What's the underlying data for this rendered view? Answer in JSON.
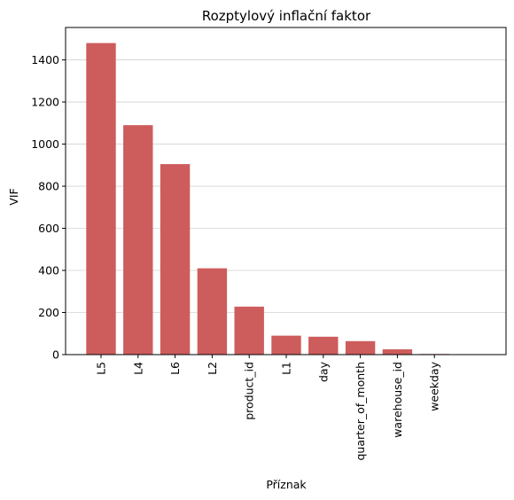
{
  "chart_data": {
    "type": "bar",
    "title": "Rozptylový inflační faktor",
    "xlabel": "Příznak",
    "ylabel": "VIF",
    "categories": [
      "L5",
      "L4",
      "L6",
      "L2",
      "product_id",
      "L1",
      "day",
      "quarter_of_month",
      "warehouse_id",
      "weekday"
    ],
    "values": [
      1480,
      1090,
      905,
      410,
      228,
      90,
      85,
      64,
      25,
      3
    ],
    "ylim": [
      0,
      1554
    ],
    "yticks": [
      0,
      200,
      400,
      600,
      800,
      1000,
      1200,
      1400
    ],
    "grid": "horizontal",
    "bar_color": "#cd5c5c",
    "grid_color": "#d3d3d3"
  }
}
